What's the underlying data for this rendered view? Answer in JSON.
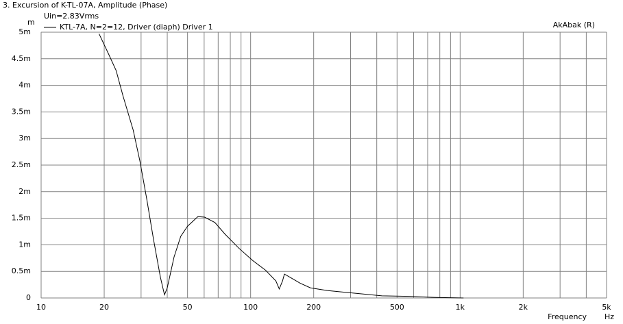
{
  "chart_data": {
    "type": "line",
    "title": "3. Excursion of K-TL-07A, Amplitude (Phase)",
    "subtitle": "Uin=2.83Vrms",
    "watermark": "AkAbak (R)",
    "y_unit": "m",
    "x_label": "Frequency",
    "x_unit": "Hz",
    "x_log": true,
    "grid": true,
    "xlim": [
      10,
      5000
    ],
    "xticks": [
      10,
      20,
      50,
      100,
      200,
      500,
      {
        "value": 1000,
        "label": "1k"
      },
      {
        "value": 2000,
        "label": "2k"
      },
      {
        "value": 5000,
        "label": "5k"
      }
    ],
    "minor_xticks": [
      30,
      40,
      60,
      70,
      80,
      90,
      300,
      400,
      600,
      700,
      800,
      900,
      3000,
      4000
    ],
    "ylim": [
      0,
      5
    ],
    "yticks": [
      0,
      {
        "value": 0.5,
        "label": "0.5m"
      },
      {
        "value": 1,
        "label": "1m"
      },
      {
        "value": 1.5,
        "label": "1.5m"
      },
      {
        "value": 2,
        "label": "2m"
      },
      {
        "value": 2.5,
        "label": "2.5m"
      },
      {
        "value": 3,
        "label": "3m"
      },
      {
        "value": 3.5,
        "label": "3.5m"
      },
      {
        "value": 4,
        "label": "4m"
      },
      {
        "value": 4.5,
        "label": "4.5m"
      },
      {
        "value": 5,
        "label": "5m"
      }
    ],
    "x": [
      18.9,
      21.1,
      22.8,
      24.6,
      27.5,
      29.6,
      31.9,
      34.4,
      37.1,
      38.8,
      40.0,
      43.1,
      46.4,
      50.0,
      56.0,
      60.3,
      67.5,
      75.5,
      87.7,
      101.9,
      118,
      132,
      137,
      142,
      145,
      154,
      172,
      193,
      232,
      313,
      423,
      570,
      769,
      1038
    ],
    "series": [
      {
        "name": "KTL-7A, N=2=12, Driver (diaph) Driver 1",
        "color": "#000000",
        "values": [
          4.97,
          4.57,
          4.28,
          3.8,
          3.16,
          2.58,
          1.87,
          1.1,
          0.39,
          0.06,
          0.19,
          0.77,
          1.16,
          1.35,
          1.53,
          1.52,
          1.42,
          1.2,
          0.94,
          0.71,
          0.52,
          0.32,
          0.17,
          0.32,
          0.45,
          0.39,
          0.28,
          0.19,
          0.14,
          0.09,
          0.04,
          0.03,
          0.01,
          0
        ]
      }
    ]
  }
}
